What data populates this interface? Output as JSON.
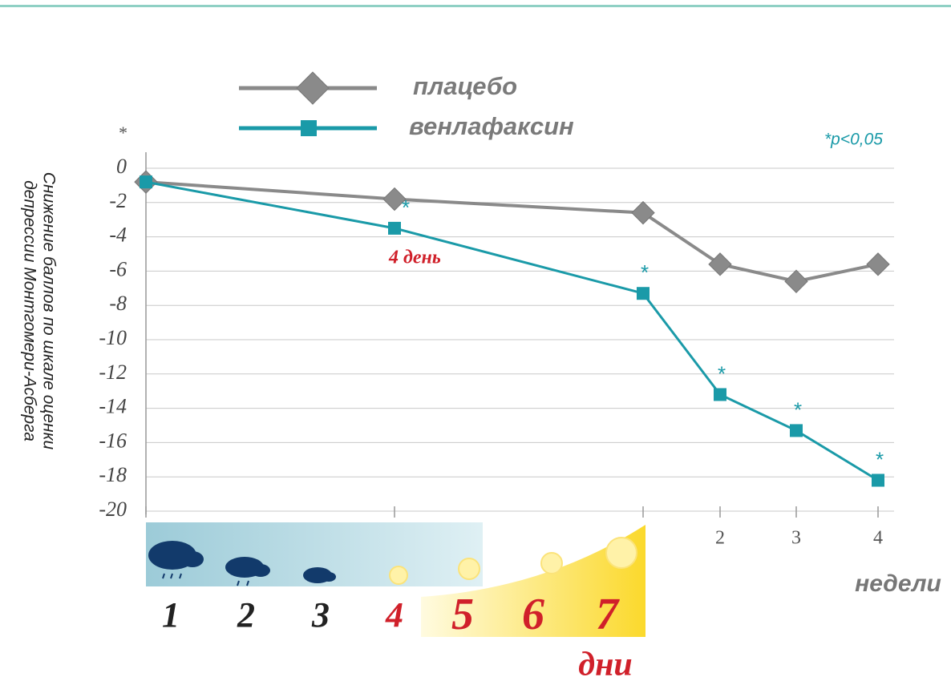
{
  "chart_data": {
    "type": "line",
    "categories": [
      null,
      null,
      null,
      "2",
      "3",
      "4"
    ],
    "series": [
      {
        "name": "плацебо",
        "color": "#8a8a8a",
        "values": [
          -0.8,
          -1.8,
          -2.6,
          -5.6,
          -6.6,
          -5.6
        ]
      },
      {
        "name": "венлафаксин",
        "color": "#1a9aa8",
        "values": [
          -0.8,
          -3.5,
          -7.3,
          -13.2,
          -15.3,
          -18.2
        ]
      }
    ],
    "significance": [
      null,
      "*",
      "*",
      "*",
      "*",
      "*"
    ],
    "axis_note": "*",
    "note": "*p<0,05",
    "annotation": "4 день",
    "ylabel": [
      "Снижение баллов по шкале оценки",
      "депрессии Монтгомери-Асберга"
    ],
    "xlabel": "недели",
    "days": [
      "1",
      "2",
      "3",
      "4",
      "5",
      "6",
      "7"
    ],
    "days_label": "дни",
    "ylim": [
      -20,
      0
    ],
    "yticks": [
      0,
      -2,
      -4,
      -6,
      -8,
      -10,
      -12,
      -14,
      -16,
      -18,
      -20
    ],
    "grid": true
  }
}
